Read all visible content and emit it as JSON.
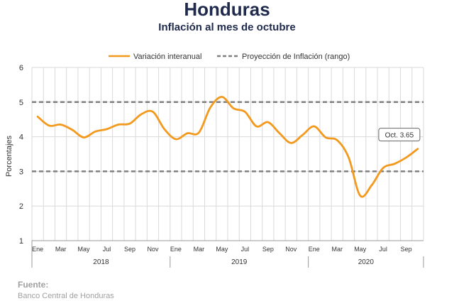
{
  "header": {
    "title": "Honduras",
    "subtitle": "Inflación al mes de octubre"
  },
  "source": {
    "label": "Fuente:",
    "text": "Banco Central de Honduras"
  },
  "colors": {
    "line": "#f39a1e",
    "projection": "#808080",
    "grid": "#d9d9d9",
    "title": "#1f2a4d"
  },
  "chart_data": {
    "type": "line",
    "ylabel": "Porcentajes",
    "ylim": [
      1,
      6
    ],
    "yticks": [
      1,
      2,
      3,
      4,
      5,
      6
    ],
    "grid": true,
    "legend_position": "top",
    "month_labels": [
      "Ene",
      "Mar",
      "May",
      "Jul",
      "Sep",
      "Nov",
      "Ene",
      "Mar",
      "May",
      "Jul",
      "Sep",
      "Nov",
      "Ene",
      "Mar",
      "May",
      "Jul",
      "Sep"
    ],
    "years": [
      "2018",
      "2019",
      "2020"
    ],
    "series": [
      {
        "name": "Variación interanual",
        "values": [
          4.58,
          4.32,
          4.35,
          4.2,
          3.98,
          4.15,
          4.22,
          4.35,
          4.38,
          4.65,
          4.72,
          4.22,
          3.93,
          4.1,
          4.12,
          4.85,
          5.15,
          4.82,
          4.72,
          4.3,
          4.42,
          4.1,
          3.82,
          4.05,
          4.3,
          3.98,
          3.9,
          3.4,
          2.3,
          2.6,
          3.1,
          3.22,
          3.4,
          3.65
        ]
      }
    ],
    "reference_lines": {
      "name": "Proyección de Inflación (rango)",
      "values": [
        3,
        5
      ]
    },
    "annotation": {
      "text": "Oct. 3.65",
      "value": 3.65
    }
  }
}
